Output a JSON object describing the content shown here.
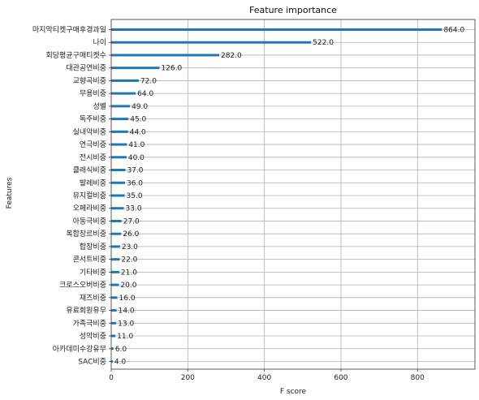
{
  "chart_data": {
    "type": "bar",
    "orientation": "horizontal",
    "title": "Feature importance",
    "xlabel": "F score",
    "ylabel": "Features",
    "xlim": [
      0,
      950
    ],
    "xticks": [
      0,
      200,
      400,
      600,
      800
    ],
    "grid": true,
    "bar_color": "#1f77b4",
    "categories": [
      "마지막티켓구매후경과일",
      "나이",
      "회당평균구매티켓수",
      "대관공연비중",
      "교향곡비중",
      "무용비중",
      "성별",
      "독주비중",
      "실내악비중",
      "연극비중",
      "전시비중",
      "클래식비중",
      "발레비중",
      "뮤지컬비중",
      "오페라비중",
      "아동극비중",
      "복합장르비중",
      "합창비중",
      "콘서트비중",
      "기타비중",
      "크로스오버비중",
      "재즈비중",
      "유료회원유무",
      "가족극비중",
      "성악비중",
      "아카데미수강유무",
      "SAC비중"
    ],
    "values": [
      864.0,
      522.0,
      282.0,
      126.0,
      72.0,
      64.0,
      49.0,
      45.0,
      44.0,
      41.0,
      40.0,
      37.0,
      36.0,
      35.0,
      33.0,
      27.0,
      26.0,
      23.0,
      22.0,
      21.0,
      20.0,
      16.0,
      14.0,
      13.0,
      11.0,
      6.0,
      4.0
    ],
    "value_labels": [
      "864.0",
      "522.0",
      "282.0",
      "126.0",
      "72.0",
      "64.0",
      "49.0",
      "45.0",
      "44.0",
      "41.0",
      "40.0",
      "37.0",
      "36.0",
      "35.0",
      "33.0",
      "27.0",
      "26.0",
      "23.0",
      "22.0",
      "21.0",
      "20.0",
      "16.0",
      "14.0",
      "13.0",
      "11.0",
      "6.0",
      "4.0"
    ]
  }
}
